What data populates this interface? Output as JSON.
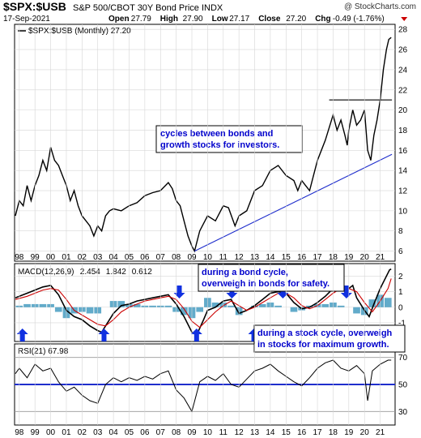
{
  "header": {
    "symbol": "$SPX:$USB",
    "description": "S&P 500/CBOT 30Y Bond Price INDX",
    "date": "17-Sep-2021",
    "watermark": "@ StockCharts.com",
    "ohlc": [
      {
        "label": "Open",
        "value": "27.79"
      },
      {
        "label": "High",
        "value": "27.90"
      },
      {
        "label": "Low",
        "value": "27.17"
      },
      {
        "label": "Close",
        "value": "27.20"
      },
      {
        "label": "Chg",
        "value": "-0.49 (-1.76%)"
      }
    ],
    "chg_arrow_color": "#cc0000"
  },
  "annotations": {
    "cycles": [
      "cycles between bonds and",
      "growth stocks for investors."
    ],
    "bond_cycle": [
      "during a bond cycle,",
      "overweigh in bonds for safety."
    ],
    "stock_cycle": [
      "during a stock cycle, overweigh",
      "in stocks for maximum growth."
    ]
  },
  "chart_data": [
    {
      "type": "line",
      "legend": "$SPX:$USB (Monthly) 27.20",
      "x_ticks": [
        "98",
        "99",
        "00",
        "01",
        "02",
        "03",
        "04",
        "05",
        "06",
        "07",
        "08",
        "09",
        "10",
        "11",
        "12",
        "13",
        "14",
        "15",
        "16",
        "17",
        "18",
        "19",
        "20",
        "21"
      ],
      "y_ticks": [
        6,
        8,
        10,
        12,
        14,
        16,
        18,
        20,
        22,
        24,
        26,
        28
      ],
      "ylim": [
        5,
        28.5
      ],
      "grid": true,
      "series": [
        {
          "color": "#000000",
          "x": [
            1997.75,
            1998.0,
            1998.25,
            1998.5,
            1998.75,
            1999.0,
            1999.25,
            1999.5,
            1999.75,
            2000.0,
            2000.25,
            2000.5,
            2000.75,
            2001.0,
            2001.25,
            2001.5,
            2001.75,
            2002.0,
            2002.25,
            2002.5,
            2002.75,
            2003.0,
            2003.25,
            2003.5,
            2003.75,
            2004.0,
            2004.5,
            2005.0,
            2005.5,
            2006.0,
            2006.5,
            2007.0,
            2007.5,
            2007.75,
            2008.0,
            2008.25,
            2008.5,
            2008.75,
            2009.0,
            2009.17,
            2009.5,
            2010.0,
            2010.5,
            2011.0,
            2011.33,
            2011.75,
            2012.0,
            2012.5,
            2013.0,
            2013.5,
            2014.0,
            2014.5,
            2015.0,
            2015.5,
            2015.75,
            2016.0,
            2016.25,
            2016.5,
            2016.75,
            2017.0,
            2017.5,
            2018.0,
            2018.25,
            2018.5,
            2018.75,
            2018.9,
            2019.0,
            2019.25,
            2019.5,
            2019.75,
            2020.0,
            2020.2,
            2020.4,
            2020.6,
            2020.8,
            2021.0,
            2021.2,
            2021.4,
            2021.55,
            2021.7
          ],
          "values": [
            9.5,
            11.0,
            10.5,
            12.5,
            11.0,
            12.5,
            13.5,
            15.0,
            14.0,
            16.3,
            15.0,
            14.5,
            13.5,
            12.5,
            11.0,
            12.0,
            10.5,
            9.5,
            9.0,
            8.5,
            7.5,
            8.5,
            8.0,
            9.5,
            10.0,
            10.2,
            10.0,
            10.5,
            10.8,
            11.5,
            11.8,
            12.0,
            12.8,
            12.2,
            11.0,
            10.5,
            9.0,
            7.5,
            6.5,
            6.0,
            8.0,
            9.5,
            9.0,
            10.5,
            10.3,
            8.5,
            9.5,
            10.0,
            12.0,
            12.5,
            14.0,
            14.5,
            13.5,
            13.0,
            12.0,
            13.0,
            12.5,
            12.0,
            13.5,
            15.0,
            17.0,
            19.5,
            18.0,
            19.0,
            17.5,
            16.5,
            18.0,
            20.0,
            18.5,
            19.0,
            20.0,
            16.0,
            15.0,
            17.5,
            19.0,
            21.0,
            24.0,
            26.0,
            27.0,
            27.2
          ]
        },
        {
          "color": "#1f2ecc",
          "x": [
            2009.17,
            2021.75
          ],
          "values": [
            6.0,
            15.6
          ]
        },
        {
          "color": "#000000",
          "x": [
            2017.75,
            2021.75
          ],
          "values": [
            21.0,
            21.0
          ]
        }
      ]
    },
    {
      "type": "line",
      "legend": [
        {
          "text": "MACD(12,26,9)",
          "color": "#000000"
        },
        {
          "text": "2.454",
          "color": "#000000"
        },
        {
          "text": "1.842",
          "color": "#cc0000"
        },
        {
          "text": "0.612",
          "color": "#2e8fb8"
        }
      ],
      "y_ticks": [
        -1,
        0,
        1,
        2
      ],
      "ylim": [
        -2.2,
        2.8
      ],
      "grid": true,
      "series": [
        {
          "color": "#000000",
          "x": [
            1997.75,
            1998.0,
            1998.5,
            1999.0,
            1999.5,
            2000.0,
            2000.5,
            2001.0,
            2001.5,
            2002.0,
            2002.5,
            2003.0,
            2003.25,
            2003.5,
            2004.0,
            2004.5,
            2005.0,
            2005.5,
            2006.0,
            2006.5,
            2007.0,
            2007.5,
            2008.0,
            2008.5,
            2009.0,
            2009.3,
            2009.75,
            2010.0,
            2010.5,
            2011.0,
            2011.5,
            2012.0,
            2012.5,
            2013.0,
            2013.5,
            2014.0,
            2014.5,
            2015.0,
            2015.5,
            2016.0,
            2016.5,
            2017.0,
            2017.5,
            2018.0,
            2018.5,
            2019.0,
            2019.25,
            2019.5,
            2020.0,
            2020.3,
            2020.6,
            2021.0,
            2021.3,
            2021.6,
            2021.7
          ],
          "values": [
            0.6,
            0.7,
            0.9,
            1.1,
            1.3,
            1.4,
            0.8,
            -0.2,
            -0.6,
            -0.8,
            -1.2,
            -1.5,
            -1.6,
            -1.2,
            -0.4,
            0.1,
            0.2,
            0.4,
            0.5,
            0.6,
            0.7,
            0.8,
            0.2,
            -0.6,
            -1.6,
            -1.8,
            -0.8,
            -0.2,
            0.0,
            0.4,
            0.5,
            -0.4,
            -0.2,
            0.1,
            0.5,
            0.9,
            1.0,
            0.9,
            0.3,
            -0.1,
            0.0,
            0.3,
            0.7,
            1.2,
            1.3,
            1.2,
            1.4,
            0.6,
            -0.2,
            -0.6,
            0.2,
            1.2,
            1.8,
            2.4,
            2.45
          ]
        },
        {
          "color": "#cc0000",
          "x": [
            1997.75,
            1998.5,
            1999.0,
            1999.5,
            2000.0,
            2000.5,
            2001.0,
            2001.5,
            2002.0,
            2002.5,
            2003.0,
            2003.5,
            2004.0,
            2004.5,
            2005.0,
            2005.5,
            2006.0,
            2006.5,
            2007.0,
            2007.5,
            2008.0,
            2008.5,
            2009.0,
            2009.5,
            2010.0,
            2010.5,
            2011.0,
            2011.5,
            2012.0,
            2012.5,
            2013.0,
            2013.5,
            2014.0,
            2014.5,
            2015.0,
            2015.5,
            2016.0,
            2016.5,
            2017.0,
            2017.5,
            2018.0,
            2018.5,
            2019.0,
            2019.5,
            2020.0,
            2020.5,
            2021.0,
            2021.5,
            2021.7
          ],
          "values": [
            0.5,
            0.7,
            0.9,
            1.1,
            1.2,
            1.1,
            0.5,
            -0.2,
            -0.5,
            -0.8,
            -1.1,
            -1.2,
            -0.8,
            -0.3,
            0.0,
            0.2,
            0.4,
            0.5,
            0.6,
            0.7,
            0.5,
            -0.1,
            -0.9,
            -1.3,
            -0.8,
            -0.3,
            0.1,
            0.4,
            0.1,
            -0.2,
            0.0,
            0.3,
            0.6,
            0.9,
            0.9,
            0.6,
            0.1,
            -0.1,
            0.1,
            0.5,
            0.9,
            1.2,
            1.2,
            1.0,
            0.3,
            -0.3,
            0.4,
            1.2,
            1.84
          ]
        }
      ],
      "histogram_color": "#2e8fb8",
      "histogram": {
        "x": [
          1998.0,
          1998.5,
          1999.0,
          1999.5,
          2000.0,
          2000.5,
          2001.0,
          2001.5,
          2002.0,
          2002.5,
          2003.0,
          2003.5,
          2004.0,
          2004.5,
          2005.0,
          2005.5,
          2006.0,
          2006.5,
          2007.0,
          2007.5,
          2008.0,
          2008.5,
          2009.0,
          2009.5,
          2010.0,
          2010.5,
          2011.0,
          2011.5,
          2012.0,
          2012.5,
          2013.0,
          2013.5,
          2014.0,
          2014.5,
          2015.0,
          2015.5,
          2016.0,
          2016.5,
          2017.0,
          2017.5,
          2018.0,
          2018.5,
          2019.0,
          2019.5,
          2020.0,
          2020.5,
          2021.0,
          2021.5
        ],
        "values": [
          0.1,
          0.2,
          0.2,
          0.2,
          0.2,
          -0.3,
          -0.7,
          -0.4,
          -0.3,
          -0.4,
          -0.4,
          0.0,
          0.4,
          0.4,
          0.2,
          0.2,
          0.1,
          0.1,
          0.1,
          0.1,
          -0.3,
          -0.5,
          -0.7,
          -0.3,
          0.6,
          0.3,
          0.3,
          0.1,
          -0.5,
          0.0,
          0.1,
          0.2,
          0.3,
          0.1,
          0.0,
          -0.3,
          -0.2,
          0.1,
          0.2,
          0.2,
          0.3,
          0.1,
          0.0,
          -0.4,
          -0.5,
          0.5,
          0.8,
          0.6
        ]
      },
      "arrows": [
        {
          "x": 1998.2,
          "dir": "up"
        },
        {
          "x": 2003.4,
          "dir": "up"
        },
        {
          "x": 2008.2,
          "dir": "down"
        },
        {
          "x": 2009.3,
          "dir": "up"
        },
        {
          "x": 2011.55,
          "dir": "down"
        },
        {
          "x": 2012.95,
          "dir": "up"
        },
        {
          "x": 2014.8,
          "dir": "down"
        },
        {
          "x": 2016.3,
          "dir": "up"
        },
        {
          "x": 2018.85,
          "dir": "down"
        },
        {
          "x": 2020.35,
          "dir": "up"
        }
      ]
    },
    {
      "type": "line",
      "legend": "RSI(21) 67.98",
      "y_ticks": [
        30,
        50,
        70
      ],
      "ylim": [
        20,
        80
      ],
      "grid": true,
      "reference_level": 50,
      "series": [
        {
          "color": "#000000",
          "x": [
            1997.75,
            1998.0,
            1998.5,
            1999.0,
            1999.5,
            2000.0,
            2000.5,
            2001.0,
            2001.5,
            2002.0,
            2002.5,
            2003.0,
            2003.5,
            2004.0,
            2004.5,
            2005.0,
            2005.5,
            2006.0,
            2006.5,
            2007.0,
            2007.5,
            2008.0,
            2008.5,
            2009.0,
            2009.5,
            2010.0,
            2010.5,
            2011.0,
            2011.5,
            2012.0,
            2012.5,
            2013.0,
            2013.5,
            2014.0,
            2014.5,
            2015.0,
            2015.5,
            2016.0,
            2016.5,
            2017.0,
            2017.5,
            2018.0,
            2018.5,
            2019.0,
            2019.5,
            2020.0,
            2020.2,
            2020.5,
            2021.0,
            2021.5,
            2021.7
          ],
          "values": [
            58,
            62,
            55,
            65,
            60,
            62,
            52,
            45,
            48,
            42,
            38,
            36,
            50,
            55,
            52,
            55,
            53,
            56,
            54,
            58,
            60,
            46,
            40,
            30,
            52,
            56,
            53,
            58,
            50,
            48,
            54,
            60,
            62,
            65,
            60,
            56,
            52,
            49,
            55,
            62,
            66,
            68,
            62,
            60,
            64,
            58,
            38,
            60,
            65,
            68,
            68
          ]
        }
      ]
    }
  ]
}
